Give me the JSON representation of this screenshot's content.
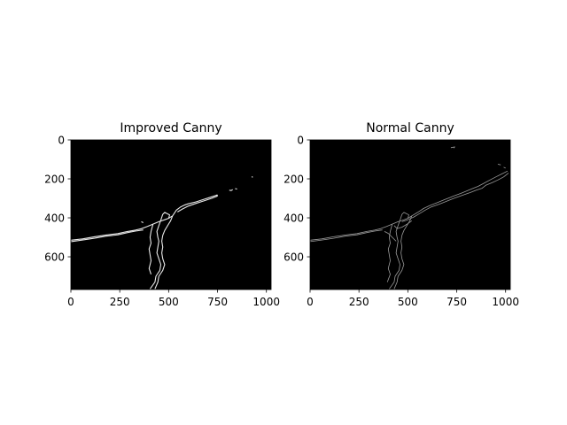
{
  "chart_data": [
    {
      "type": "image",
      "title": "Improved Canny",
      "xlim": [
        0,
        1024
      ],
      "ylim": [
        768,
        0
      ],
      "xticks": [
        0,
        250,
        500,
        750,
        1000
      ],
      "yticks": [
        0,
        200,
        400,
        600
      ],
      "background": "#000000",
      "edge_color": "#e8e8e8",
      "edges": [
        [
          [
            0,
            515
          ],
          [
            60,
            508
          ],
          [
            120,
            497
          ],
          [
            180,
            488
          ],
          [
            240,
            481
          ],
          [
            290,
            470
          ],
          [
            330,
            463
          ],
          [
            360,
            456
          ],
          [
            390,
            445
          ]
        ],
        [
          [
            0,
            522
          ],
          [
            60,
            514
          ],
          [
            120,
            505
          ],
          [
            180,
            494
          ],
          [
            240,
            487
          ],
          [
            290,
            476
          ],
          [
            330,
            468
          ],
          [
            370,
            462
          ]
        ],
        [
          [
            390,
            445
          ],
          [
            420,
            432
          ],
          [
            450,
            420
          ],
          [
            480,
            410
          ],
          [
            500,
            402
          ],
          [
            520,
            390
          ]
        ],
        [
          [
            500,
            402
          ],
          [
            505,
            385
          ],
          [
            480,
            372
          ],
          [
            470,
            382
          ],
          [
            460,
            412
          ],
          [
            450,
            440
          ],
          [
            440,
            470
          ],
          [
            445,
            500
          ],
          [
            450,
            520
          ],
          [
            445,
            550
          ],
          [
            440,
            580
          ],
          [
            450,
            610
          ],
          [
            460,
            640
          ],
          [
            455,
            670
          ],
          [
            435,
            700
          ],
          [
            430,
            730
          ],
          [
            405,
            765
          ]
        ],
        [
          [
            520,
            390
          ],
          [
            510,
            415
          ],
          [
            495,
            440
          ],
          [
            480,
            465
          ],
          [
            470,
            490
          ],
          [
            465,
            520
          ],
          [
            470,
            550
          ],
          [
            465,
            580
          ],
          [
            470,
            610
          ],
          [
            480,
            640
          ],
          [
            470,
            670
          ],
          [
            450,
            700
          ],
          [
            445,
            730
          ],
          [
            430,
            765
          ]
        ],
        [
          [
            420,
            432
          ],
          [
            410,
            470
          ],
          [
            405,
            500
          ],
          [
            410,
            530
          ],
          [
            400,
            560
          ],
          [
            405,
            590
          ],
          [
            410,
            620
          ],
          [
            400,
            660
          ],
          [
            410,
            690
          ]
        ],
        [
          [
            520,
            390
          ],
          [
            540,
            360
          ],
          [
            560,
            345
          ],
          [
            580,
            335
          ],
          [
            600,
            328
          ],
          [
            640,
            318
          ],
          [
            680,
            305
          ],
          [
            720,
            292
          ],
          [
            750,
            282
          ]
        ],
        [
          [
            545,
            370
          ],
          [
            570,
            355
          ],
          [
            600,
            340
          ],
          [
            640,
            326
          ],
          [
            680,
            313
          ],
          [
            720,
            300
          ],
          [
            750,
            288
          ]
        ],
        [
          [
            745,
            282
          ],
          [
            750,
            286
          ],
          [
            745,
            290
          ]
        ],
        [
          [
            810,
            258
          ],
          [
            820,
            260
          ],
          [
            828,
            255
          ]
        ],
        [
          [
            840,
            250
          ],
          [
            850,
            252
          ]
        ],
        [
          [
            925,
            188
          ],
          [
            930,
            192
          ]
        ],
        [
          [
            360,
            420
          ],
          [
            370,
            425
          ]
        ]
      ]
    },
    {
      "type": "image",
      "title": "Normal Canny",
      "xlim": [
        0,
        1024
      ],
      "ylim": [
        768,
        0
      ],
      "xticks": [
        0,
        250,
        500,
        750,
        1000
      ],
      "yticks": [
        0,
        200,
        400,
        600
      ],
      "background": "#000000",
      "edge_color": "#9a9a9a",
      "edges": [
        [
          [
            0,
            515
          ],
          [
            60,
            508
          ],
          [
            120,
            497
          ],
          [
            180,
            488
          ],
          [
            240,
            481
          ],
          [
            290,
            470
          ],
          [
            330,
            463
          ],
          [
            360,
            456
          ],
          [
            390,
            445
          ]
        ],
        [
          [
            0,
            522
          ],
          [
            60,
            514
          ],
          [
            120,
            505
          ],
          [
            180,
            494
          ],
          [
            240,
            487
          ],
          [
            290,
            476
          ],
          [
            330,
            468
          ],
          [
            370,
            462
          ]
        ],
        [
          [
            390,
            445
          ],
          [
            420,
            432
          ],
          [
            450,
            420
          ],
          [
            480,
            410
          ],
          [
            500,
            402
          ],
          [
            520,
            390
          ],
          [
            550,
            372
          ],
          [
            580,
            352
          ],
          [
            610,
            338
          ],
          [
            650,
            322
          ],
          [
            690,
            306
          ],
          [
            730,
            290
          ],
          [
            770,
            275
          ],
          [
            800,
            262
          ],
          [
            830,
            250
          ],
          [
            860,
            238
          ],
          [
            890,
            222
          ],
          [
            920,
            206
          ],
          [
            950,
            190
          ],
          [
            980,
            175
          ],
          [
            1010,
            160
          ]
        ],
        [
          [
            470,
            420
          ],
          [
            500,
            410
          ],
          [
            530,
            396
          ],
          [
            560,
            378
          ],
          [
            590,
            360
          ],
          [
            620,
            344
          ],
          [
            660,
            330
          ],
          [
            700,
            314
          ],
          [
            740,
            298
          ],
          [
            780,
            284
          ],
          [
            820,
            270
          ],
          [
            850,
            258
          ],
          [
            880,
            248
          ],
          [
            900,
            232
          ],
          [
            930,
            220
          ],
          [
            960,
            206
          ],
          [
            990,
            190
          ],
          [
            1015,
            170
          ]
        ],
        [
          [
            500,
            402
          ],
          [
            505,
            385
          ],
          [
            480,
            372
          ],
          [
            470,
            382
          ],
          [
            460,
            412
          ],
          [
            450,
            440
          ],
          [
            440,
            470
          ],
          [
            445,
            500
          ],
          [
            450,
            520
          ],
          [
            445,
            550
          ],
          [
            440,
            580
          ],
          [
            450,
            610
          ],
          [
            460,
            640
          ],
          [
            455,
            670
          ],
          [
            435,
            700
          ],
          [
            430,
            730
          ],
          [
            405,
            765
          ]
        ],
        [
          [
            520,
            390
          ],
          [
            510,
            415
          ],
          [
            495,
            440
          ],
          [
            480,
            465
          ],
          [
            470,
            490
          ],
          [
            465,
            520
          ],
          [
            470,
            550
          ],
          [
            465,
            580
          ],
          [
            470,
            610
          ],
          [
            480,
            640
          ],
          [
            470,
            670
          ],
          [
            450,
            700
          ],
          [
            445,
            730
          ],
          [
            430,
            765
          ]
        ],
        [
          [
            420,
            432
          ],
          [
            410,
            470
          ],
          [
            405,
            500
          ],
          [
            410,
            530
          ],
          [
            400,
            560
          ],
          [
            405,
            590
          ],
          [
            410,
            620
          ],
          [
            400,
            660
          ],
          [
            410,
            690
          ],
          [
            395,
            730
          ]
        ],
        [
          [
            430,
            440
          ],
          [
            445,
            455
          ],
          [
            470,
            448
          ],
          [
            500,
            430
          ],
          [
            520,
            415
          ]
        ],
        [
          [
            380,
            470
          ],
          [
            400,
            480
          ],
          [
            420,
            500
          ],
          [
            440,
            520
          ]
        ],
        [
          [
            720,
            40
          ],
          [
            740,
            36
          ],
          [
            735,
            42
          ]
        ],
        [
          [
            960,
            125
          ],
          [
            975,
            128
          ]
        ],
        [
          [
            990,
            140
          ],
          [
            1000,
            145
          ]
        ]
      ]
    }
  ]
}
